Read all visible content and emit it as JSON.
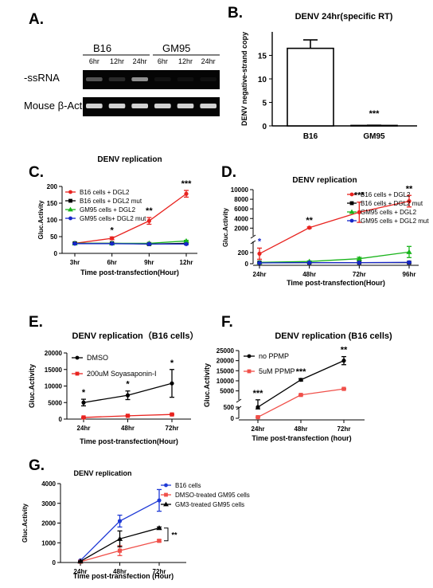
{
  "figure": {
    "panel_letters": [
      "A.",
      "B.",
      "C.",
      "D.",
      "E.",
      "F.",
      "G."
    ]
  },
  "gel": {
    "group_labels": [
      "B16",
      "GM95"
    ],
    "lane_labels": [
      "6hr",
      "12hr",
      "24hr",
      "6hr",
      "12hr",
      "24hr"
    ],
    "row_labels": [
      "-ssRNA",
      "Mouse β-Actin"
    ],
    "ssRNA_band_intensity": [
      0.55,
      0.35,
      0.75,
      0.1,
      0.06,
      0.05
    ],
    "actin_band_intensity": [
      0.85,
      0.85,
      0.85,
      0.85,
      0.85,
      0.85
    ]
  },
  "chart_data": [
    {
      "panel": "B.",
      "type": "bar",
      "title": "DENV 24hr(specific RT)",
      "ylabel": "DENV  negative-strand copy",
      "xlabel": "",
      "categories": [
        "B16",
        "GM95"
      ],
      "values": [
        16.5,
        0.1
      ],
      "errors": [
        1.8,
        0.05
      ],
      "ylim": [
        0,
        20
      ],
      "yticks": [
        "0",
        "5",
        "10",
        "15"
      ],
      "annotations": [
        {
          "text": "***",
          "category": "GM95"
        }
      ],
      "colors": {
        "bar": "#ffffff",
        "edge": "#000000"
      }
    },
    {
      "panel": "C.",
      "type": "line",
      "title": "DENV replication",
      "xlabel": "Time post-transfection(Hour)",
      "ylabel": "Gluc.Activity",
      "categories": [
        "3hr",
        "6hr",
        "9hr",
        "12hr"
      ],
      "ylim": [
        0,
        200
      ],
      "yticks": [
        "0",
        "50",
        "100",
        "150",
        "200"
      ],
      "series": [
        {
          "name": "B16 cells + DGL2",
          "color": "#e8231f",
          "values": [
            30,
            45,
            97,
            178
          ],
          "errors": [
            2,
            4,
            10,
            10
          ]
        },
        {
          "name": "B16 cells + DGL2 mut",
          "color": "#000000",
          "values": [
            30,
            30,
            28,
            30
          ],
          "errors": [
            1,
            1,
            1,
            1
          ]
        },
        {
          "name": "GM95 cells + DGL2",
          "color": "#19b41b",
          "values": [
            30,
            30,
            30,
            37
          ],
          "errors": [
            1,
            1,
            1,
            2
          ]
        },
        {
          "name": "GM95 cells+ DGL2 mut",
          "color": "#1726c8",
          "values": [
            29,
            29,
            28,
            28
          ],
          "errors": [
            1,
            1,
            1,
            1
          ]
        }
      ],
      "annotations": [
        {
          "text": "*",
          "category": "6hr"
        },
        {
          "text": "**",
          "category": "9hr"
        },
        {
          "text": "***",
          "category": "12hr"
        }
      ],
      "legend": "top-left"
    },
    {
      "panel": "D.",
      "type": "line",
      "title": "DENV replication",
      "xlabel": "Time post-transfection(Hour)",
      "ylabel": "Gluc.Activity",
      "categories": [
        "24hr",
        "48hr",
        "72hr",
        "96hr"
      ],
      "axis_break": true,
      "ylim_lower": [
        0,
        400
      ],
      "yticks_lower": [
        "0",
        "200"
      ],
      "ylim_upper": [
        400,
        10000
      ],
      "yticks_upper": [
        "2000",
        "4000",
        "6000",
        "8000",
        "10000"
      ],
      "series": [
        {
          "name": "B16 cells + DGL2",
          "color": "#e8231f",
          "values": [
            180,
            2100,
            5300,
            7600
          ],
          "errors": [
            100,
            150,
            2100,
            1200
          ]
        },
        {
          "name": "B16 cells + DGL2 mut",
          "color": "#000000",
          "values": [
            20,
            20,
            20,
            20
          ],
          "errors": [
            5,
            5,
            5,
            5
          ]
        },
        {
          "name": "GM95 cells + DGL2",
          "color": "#19b41b",
          "values": [
            25,
            40,
            90,
            210
          ],
          "errors": [
            5,
            10,
            25,
            100
          ]
        },
        {
          "name": "GM95 cells + DGL2 mut",
          "color": "#1726c8",
          "values": [
            15,
            20,
            20,
            25
          ],
          "errors": [
            3,
            3,
            3,
            3
          ]
        }
      ],
      "annotations": [
        {
          "text": "*",
          "category": "24hr"
        },
        {
          "text": "**",
          "category": "48hr"
        },
        {
          "text": "***",
          "category": "72hr"
        },
        {
          "text": "**",
          "category": "96hr"
        }
      ],
      "legend": "top-right"
    },
    {
      "panel": "E.",
      "type": "line",
      "title": "DENV replication（B16 cells）",
      "xlabel": "Time post-transfection(Hour)",
      "ylabel": "Gluc.Activity",
      "categories": [
        "24hr",
        "48hr",
        "72hr"
      ],
      "ylim": [
        0,
        20000
      ],
      "yticks": [
        "0",
        "5000",
        "10000",
        "15000",
        "20000"
      ],
      "series": [
        {
          "name": "DMSO",
          "color": "#000000",
          "values": [
            5000,
            7200,
            10800
          ],
          "errors": [
            1000,
            1300,
            4200
          ]
        },
        {
          "name": "200uM Soyasaponin-I",
          "color": "#e8231f",
          "values": [
            500,
            1000,
            1400
          ],
          "errors": [
            100,
            100,
            150
          ]
        }
      ],
      "annotations": [
        {
          "text": "*",
          "category": "24hr"
        },
        {
          "text": "*",
          "category": "48hr"
        },
        {
          "text": "*",
          "category": "72hr"
        }
      ],
      "legend": "top-left"
    },
    {
      "panel": "F.",
      "type": "line",
      "title": "DENV replication (B16 cells)",
      "xlabel": "Time post-transfection (hour)",
      "ylabel": "Gluc.Activity",
      "categories": [
        "24hr",
        "48hr",
        "72hr"
      ],
      "axis_break": true,
      "ylim_lower": [
        0,
        500
      ],
      "yticks_lower": [
        "0",
        "500"
      ],
      "ylim_upper": [
        500,
        25000
      ],
      "yticks_upper": [
        "5000",
        "10000",
        "15000",
        "20000",
        "25000"
      ],
      "series": [
        {
          "name": "no PPMP",
          "color": "#000000",
          "values": [
            500,
            10500,
            20000
          ],
          "errors": [
            80,
            600,
            2000
          ]
        },
        {
          "name": "5uM PPMP",
          "color": "#f0504a",
          "values": [
            50,
            3000,
            6000
          ],
          "errors": [
            10,
            150,
            200
          ]
        }
      ],
      "annotations": [
        {
          "text": "***",
          "category": "24hr"
        },
        {
          "text": "***",
          "category": "48hr"
        },
        {
          "text": "**",
          "category": "72hr"
        }
      ],
      "legend": "top-left"
    },
    {
      "panel": "G.",
      "type": "line",
      "title": "DENV replication",
      "xlabel": "Time post-transfection (Hour)",
      "ylabel": "Gluc.Activity",
      "categories": [
        "24hr",
        "48hr",
        "72hr"
      ],
      "ylim": [
        0,
        4000
      ],
      "yticks": [
        "0",
        "1000",
        "2000",
        "3000",
        "4000"
      ],
      "series": [
        {
          "name": "B16 cells",
          "color": "#1f3ad6",
          "values": [
            100,
            2100,
            3150
          ],
          "errors": [
            20,
            300,
            550
          ]
        },
        {
          "name": "DMSO-treated GM95 cells",
          "color": "#f0504a",
          "values": [
            40,
            600,
            1100
          ],
          "errors": [
            10,
            250,
            50
          ]
        },
        {
          "name": "GM3-treated GM95 cells",
          "color": "#000000",
          "values": [
            60,
            1200,
            1750
          ],
          "errors": [
            15,
            400,
            50
          ]
        }
      ],
      "annotations": [
        {
          "text": "**",
          "category": "72hr"
        }
      ],
      "legend": "top-right"
    }
  ]
}
